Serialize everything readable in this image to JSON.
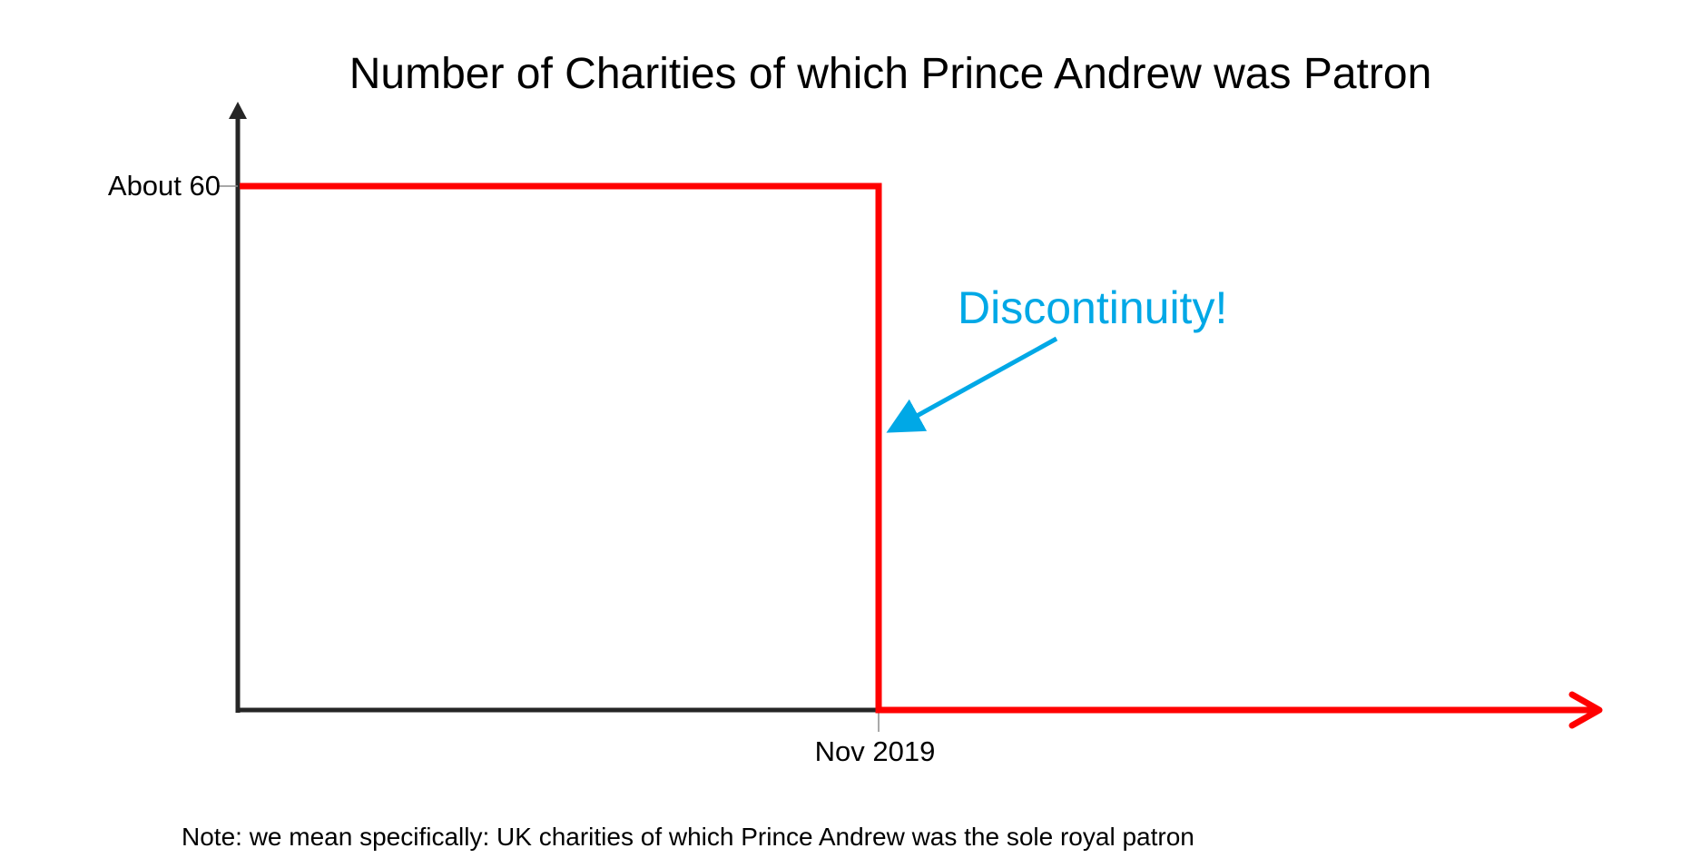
{
  "chart_data": {
    "type": "line",
    "title": "Number of Charities of which Prince Andrew was Patron",
    "xlabel": "",
    "ylabel": "",
    "x_tick_labels": [
      "Nov 2019"
    ],
    "y_tick_labels": [
      "About 60"
    ],
    "series": [
      {
        "values_before": 60,
        "values_after": 0,
        "step_at": "Nov 2019"
      }
    ],
    "ylim": [
      0,
      60
    ],
    "grid": false,
    "legend": "none",
    "annotations": [
      {
        "text": "Discontinuity!",
        "points_to": "Nov 2019"
      }
    ],
    "note": "Note: we mean specifically: UK charities of which Prince Andrew was the sole royal patron"
  },
  "colors": {
    "series": "#ff0000",
    "axis": "#262626",
    "annotation": "#00a8e6",
    "tick": "#8c8c8c"
  }
}
